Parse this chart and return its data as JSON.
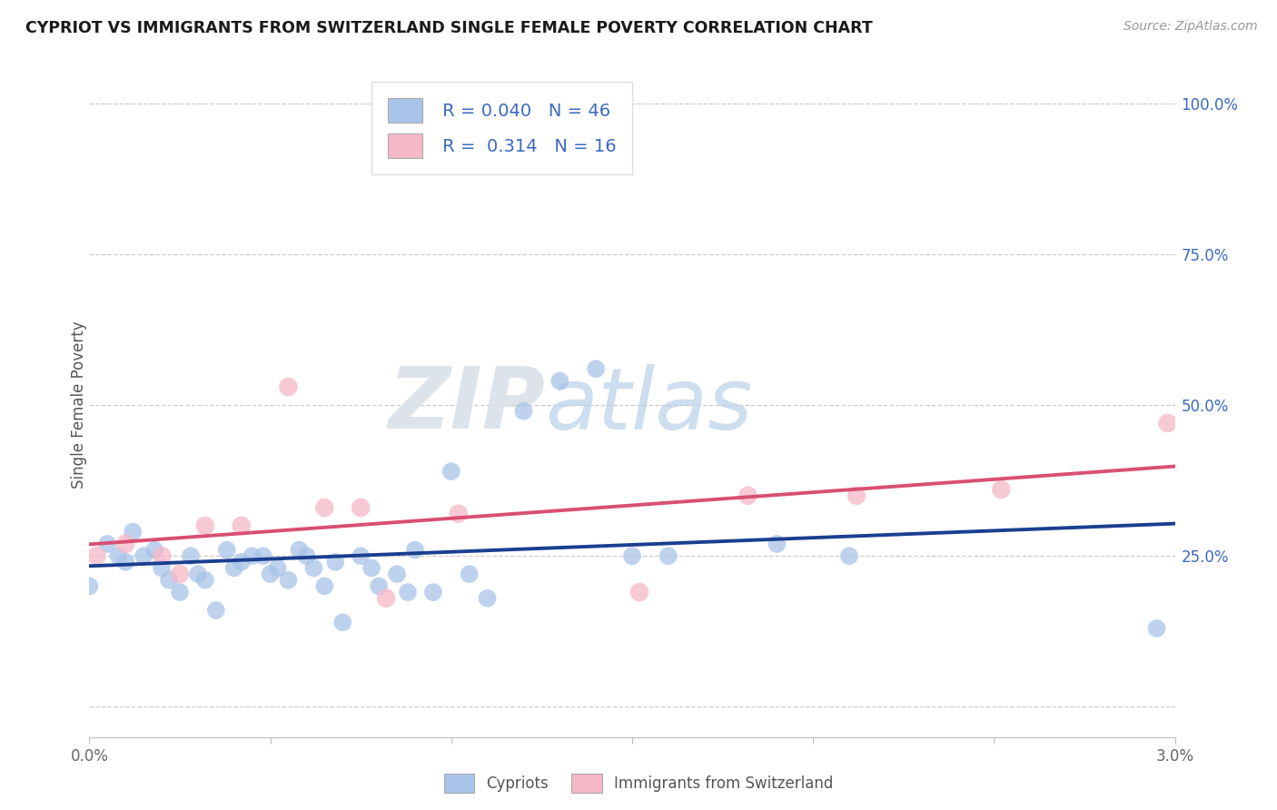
{
  "title": "CYPRIOT VS IMMIGRANTS FROM SWITZERLAND SINGLE FEMALE POVERTY CORRELATION CHART",
  "source": "Source: ZipAtlas.com",
  "ylabel": "Single Female Poverty",
  "right_yticks": [
    0.0,
    0.25,
    0.5,
    0.75,
    1.0
  ],
  "right_yticklabels": [
    "",
    "25.0%",
    "50.0%",
    "75.0%",
    "100.0%"
  ],
  "xmin": 0.0,
  "xmax": 0.03,
  "ymin": -0.05,
  "ymax": 1.05,
  "blue_color": "#a8c4e8",
  "pink_color": "#f5b8c8",
  "blue_line_color": "#1a3f8f",
  "pink_line_color": "#d94f72",
  "legend_R1": "R = 0.040",
  "legend_N1": "N = 46",
  "legend_R2": "R =  0.314",
  "legend_N2": "N = 16",
  "text_color_blue": "#3a6abf",
  "watermark_zip": "ZIP",
  "watermark_atlas": "atlas",
  "cypriot_x": [
    0.0,
    0.0005,
    0.0008,
    0.001,
    0.0012,
    0.0015,
    0.0018,
    0.002,
    0.0022,
    0.0025,
    0.0028,
    0.003,
    0.0032,
    0.0035,
    0.0038,
    0.004,
    0.0042,
    0.0045,
    0.0048,
    0.005,
    0.0052,
    0.0055,
    0.0058,
    0.006,
    0.0062,
    0.0065,
    0.0068,
    0.007,
    0.0075,
    0.0078,
    0.008,
    0.0085,
    0.0088,
    0.009,
    0.0095,
    0.01,
    0.0105,
    0.011,
    0.012,
    0.013,
    0.014,
    0.015,
    0.016,
    0.019,
    0.021,
    0.0295
  ],
  "cypriot_y": [
    0.2,
    0.27,
    0.25,
    0.24,
    0.29,
    0.25,
    0.26,
    0.23,
    0.21,
    0.19,
    0.25,
    0.22,
    0.21,
    0.16,
    0.26,
    0.23,
    0.24,
    0.25,
    0.25,
    0.22,
    0.23,
    0.21,
    0.26,
    0.25,
    0.23,
    0.2,
    0.24,
    0.14,
    0.25,
    0.23,
    0.2,
    0.22,
    0.19,
    0.26,
    0.19,
    0.39,
    0.22,
    0.18,
    0.49,
    0.54,
    0.56,
    0.25,
    0.25,
    0.27,
    0.25,
    0.13
  ],
  "swiss_x": [
    0.0002,
    0.001,
    0.002,
    0.0025,
    0.0032,
    0.0042,
    0.0055,
    0.0065,
    0.0075,
    0.0082,
    0.0102,
    0.0152,
    0.0182,
    0.0212,
    0.0252,
    0.0298
  ],
  "swiss_y": [
    0.25,
    0.27,
    0.25,
    0.22,
    0.3,
    0.3,
    0.53,
    0.33,
    0.33,
    0.18,
    0.32,
    0.19,
    0.35,
    0.35,
    0.36,
    0.47
  ]
}
